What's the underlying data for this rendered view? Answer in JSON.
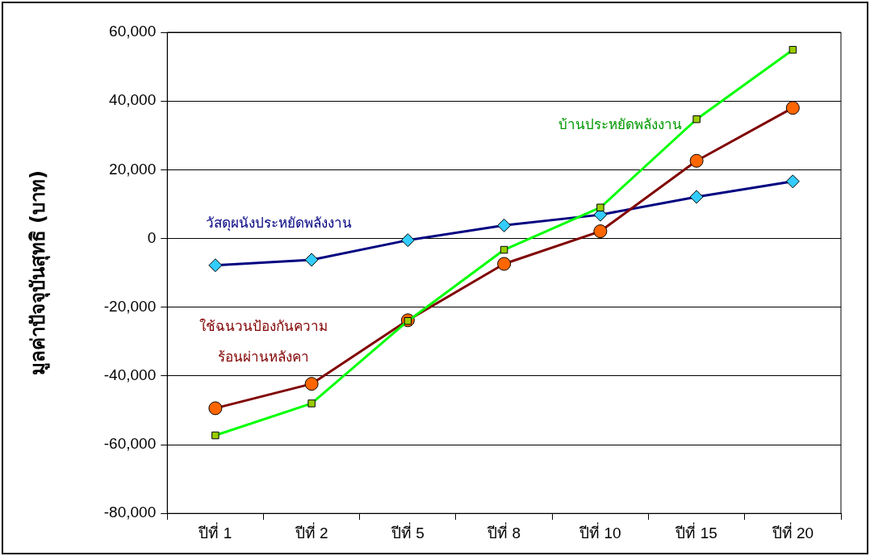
{
  "chart_data": {
    "type": "line",
    "categories": [
      "ปีที่ 1",
      "ปีที่ 2",
      "ปีที่ 5",
      "ปีที่ 8",
      "ปีที่ 10",
      "ปีที่ 15",
      "ปีที่ 20"
    ],
    "ylabel": "มูลค่าปัจจุบันสุทธิ (บาท)",
    "ylim": [
      -80000,
      60000
    ],
    "yticks": [
      {
        "value": -80000,
        "label": "-80,000"
      },
      {
        "value": -60000,
        "label": "-60,000"
      },
      {
        "value": -40000,
        "label": "-40,000"
      },
      {
        "value": -20000,
        "label": "-20,000"
      },
      0,
      {
        "value": 20000,
        "label": "20,000"
      },
      {
        "value": 40000,
        "label": "40,000"
      },
      {
        "value": 60000,
        "label": "60,000"
      }
    ],
    "grid": "y",
    "legend": false,
    "series": [
      {
        "name": "วัสดุผนังประหยัดพลังงาน",
        "color": "#000080",
        "marker": "diamond",
        "colors": [
          "#33ccff",
          "#33ccff",
          "#33ccff",
          "#33ccff",
          "#33ccff",
          "#33ccff",
          "#33ccff"
        ],
        "values": [
          -7800,
          -6200,
          -500,
          3800,
          6900,
          12100,
          16600
        ]
      },
      {
        "name": "ใช้ฉนวนป้องกันความร้อนผ่านหลังคา",
        "color": "#800000",
        "marker": "circle",
        "colors": [
          "#ff6600",
          "#ff6600",
          "#ff6600",
          "#ff6600",
          "#ff6600",
          "#ff6600",
          "#ff6600"
        ],
        "values": [
          -49400,
          -42300,
          -23800,
          -7400,
          2100,
          22600,
          38000
        ]
      },
      {
        "name": "บ้านประหยัดพลังงาน",
        "color": "#00ff00",
        "marker": "square",
        "colors": [
          "#99cc00",
          "#99cc00",
          "#99cc00",
          "#99cc00",
          "#99cc00",
          "#99cc00",
          "#99cc00"
        ],
        "values": [
          -57300,
          -48000,
          -24000,
          -3300,
          9000,
          34700,
          54900
        ]
      }
    ]
  }
}
